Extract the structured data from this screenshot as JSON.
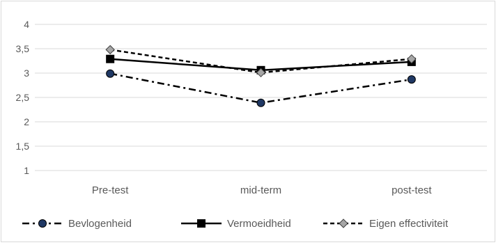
{
  "chart_data": {
    "type": "line",
    "categories": [
      "Pre-test",
      "mid-term",
      "post-test"
    ],
    "ylim": [
      1,
      4
    ],
    "yticks": [
      "1",
      "1,5",
      "2",
      "2,5",
      "3",
      "3,5",
      "4"
    ],
    "grid": true,
    "legend_position": "bottom",
    "series": [
      {
        "name": "Bevlogenheid",
        "values": [
          2.99,
          2.39,
          2.87
        ],
        "marker": "circle",
        "line_style": "dash-dot",
        "marker_fill": "#1f3864"
      },
      {
        "name": "Vermoeidheid",
        "values": [
          3.29,
          3.06,
          3.23
        ],
        "marker": "square",
        "line_style": "solid",
        "marker_fill": "#000000"
      },
      {
        "name": "Eigen effectiviteit",
        "values": [
          3.48,
          3.01,
          3.29
        ],
        "marker": "diamond",
        "line_style": "dashed",
        "marker_fill": "#a6a6a6"
      }
    ],
    "colors": {
      "line": "#000000",
      "grid": "#d9d9d9",
      "text": "#595959"
    }
  }
}
